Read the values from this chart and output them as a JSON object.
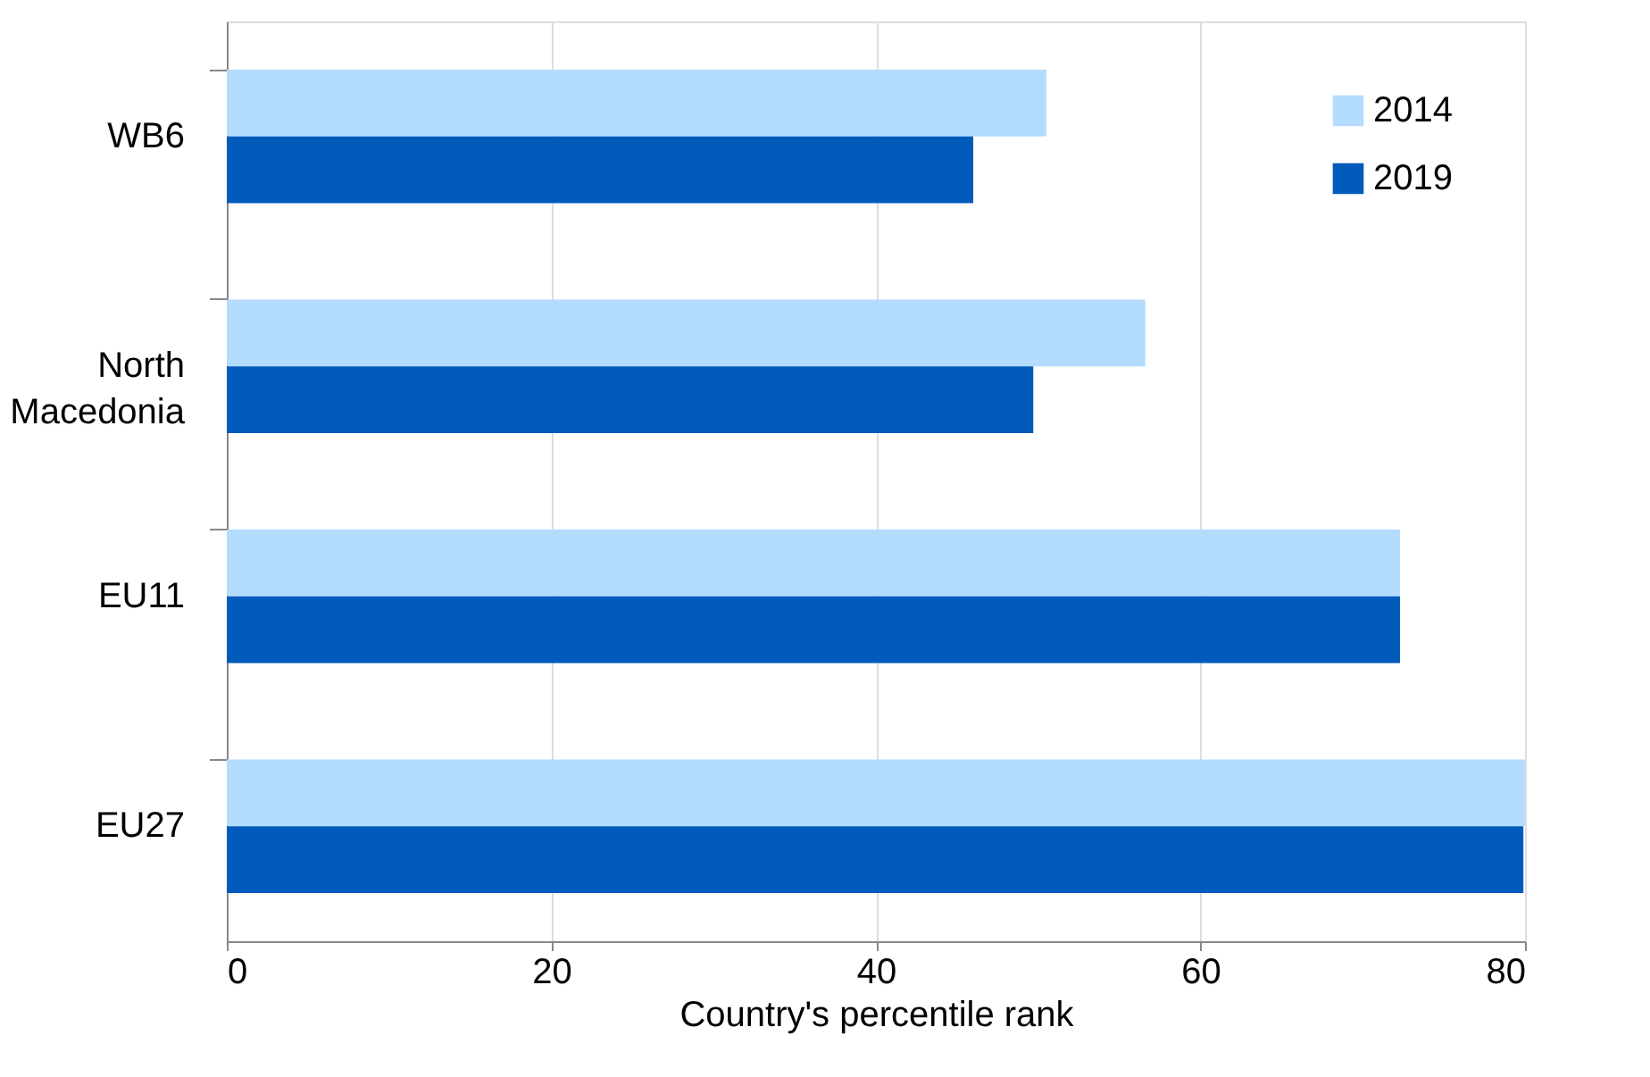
{
  "chart_data": {
    "type": "bar",
    "orientation": "horizontal",
    "xlabel": "Country's percentile rank",
    "categories": [
      "WB6",
      "North Macedonia",
      "EU11",
      "EU27"
    ],
    "series": [
      {
        "name": "2014",
        "color": "#b3dcff",
        "values": [
          50.5,
          56.6,
          72.3,
          80.0
        ]
      },
      {
        "name": "2019",
        "color": "#005bbb",
        "values": [
          46.0,
          49.7,
          72.3,
          79.9
        ]
      }
    ],
    "xlim": [
      0,
      80
    ],
    "xticks": [
      0,
      20,
      40,
      60,
      80
    ],
    "grid": "x",
    "legend": "top right"
  }
}
